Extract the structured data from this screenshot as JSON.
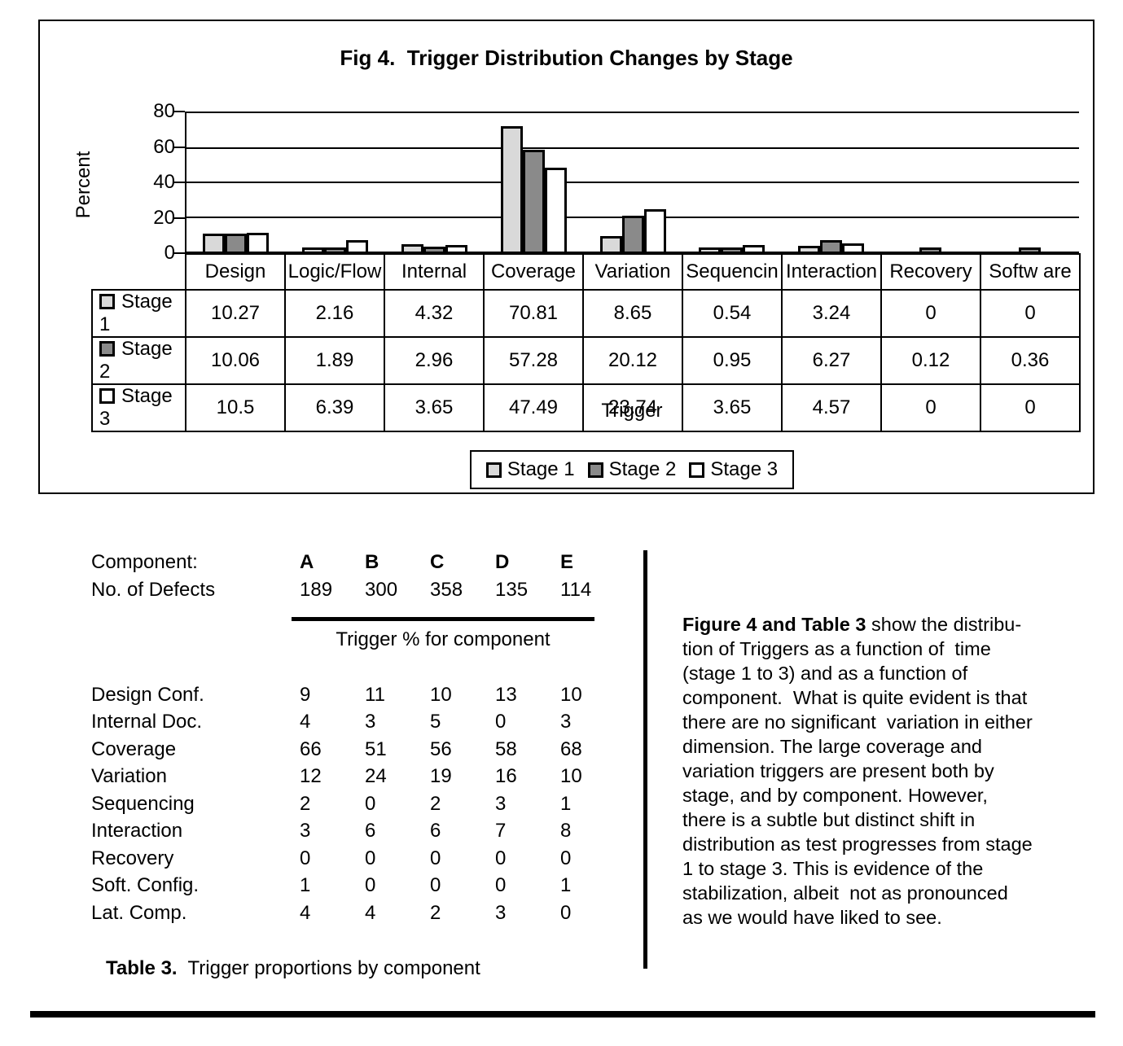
{
  "chart_data": {
    "type": "bar",
    "title": "Fig 4.  Trigger Distribution Changes by Stage",
    "xlabel": "Trigger",
    "ylabel": "Percent",
    "ylim": [
      0,
      80
    ],
    "yticks": [
      0,
      20,
      40,
      60,
      80
    ],
    "grid": true,
    "legend_position": "bottom",
    "categories": [
      "Design",
      "Logic/Flow",
      "Internal",
      "Coverage",
      "Variation",
      "Sequencin",
      "Interaction",
      "Recovery",
      "Softw are"
    ],
    "series": [
      {
        "name": "Stage 1",
        "color": "#d9d9d9",
        "values": [
          10.27,
          2.16,
          4.32,
          70.81,
          8.65,
          0.54,
          3.24,
          0,
          0
        ]
      },
      {
        "name": "Stage 2",
        "color": "#8a8a8a",
        "values": [
          10.06,
          1.89,
          2.96,
          57.28,
          20.12,
          0.95,
          6.27,
          0.12,
          0.36
        ]
      },
      {
        "name": "Stage 3",
        "color": "#ffffff",
        "values": [
          10.5,
          6.39,
          3.65,
          47.49,
          23.74,
          3.65,
          4.57,
          0,
          0
        ]
      }
    ]
  },
  "component_table": {
    "component_label": "Component:",
    "defects_label": "No. of Defects",
    "components": [
      "A",
      "B",
      "C",
      "D",
      "E"
    ],
    "defects": [
      "189",
      "300",
      "358",
      "135",
      "114"
    ],
    "subtitle": "Trigger % for component",
    "rows": [
      {
        "label": "Design Conf.",
        "values": [
          9,
          11,
          10,
          13,
          10
        ]
      },
      {
        "label": "Internal Doc.",
        "values": [
          4,
          3,
          5,
          0,
          3
        ]
      },
      {
        "label": "Coverage",
        "values": [
          66,
          51,
          56,
          58,
          68
        ]
      },
      {
        "label": "Variation",
        "values": [
          12,
          24,
          19,
          16,
          10
        ]
      },
      {
        "label": "Sequencing",
        "values": [
          2,
          0,
          2,
          3,
          1
        ]
      },
      {
        "label": "Interaction",
        "values": [
          3,
          6,
          6,
          7,
          8
        ]
      },
      {
        "label": "Recovery",
        "values": [
          0,
          0,
          0,
          0,
          0
        ]
      },
      {
        "label": "Soft. Config.",
        "values": [
          1,
          0,
          0,
          0,
          1
        ]
      },
      {
        "label": "Lat. Comp.",
        "values": [
          4,
          4,
          2,
          3,
          0
        ]
      }
    ],
    "caption_bold": "Table 3.",
    "caption_rest": "  Trigger proportions by component"
  },
  "paragraph": {
    "lead_bold": "Figure 4 and Table 3",
    "body": " show the distribu-\ntion of Triggers as a function of  time\n(stage 1 to 3) and as a function of\ncomponent.  What is quite evident is that\nthere are no significant  variation in either\ndimension. The large coverage and\nvariation triggers are present both by\nstage, and by component. However,\nthere is a subtle but distinct shift in\ndistribution as test progresses from stage\n1 to stage 3. This is evidence of the\nstabilization, albeit  not as pronounced\nas we would have liked to see."
  }
}
